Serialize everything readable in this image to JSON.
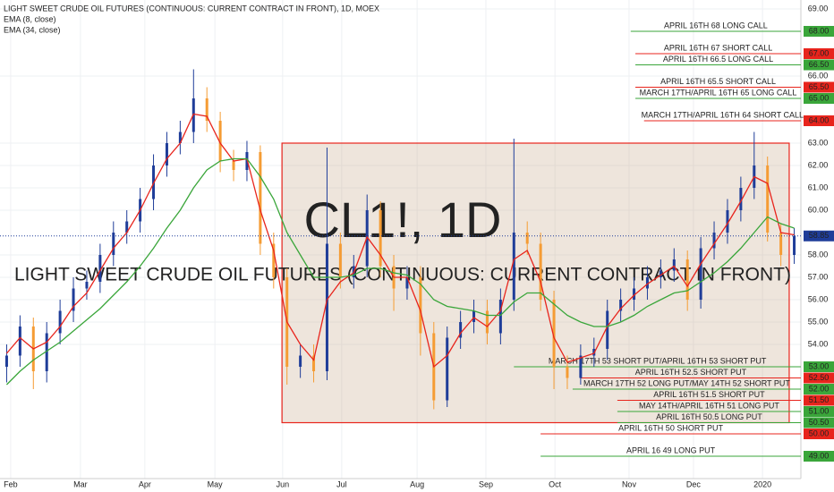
{
  "chart_data": {
    "type": "candlestick",
    "title": "LIGHT SWEET CRUDE OIL FUTURES (CONTINUOUS: CURRENT CONTRACT IN FRONT), 1D, MOEX",
    "watermark": "CL1!, 1D",
    "watermark_subtitle": "LIGHT SWEET CRUDE OIL FUTURES (CONTINUOUS: CURRENT CONTRACT IN FRONT)",
    "up_color": "#1f3d99",
    "down_color": "#f59c34",
    "x": [
      2,
      6,
      10,
      14,
      18,
      22,
      26,
      30,
      34,
      38,
      42,
      46,
      50,
      54,
      58,
      62,
      66,
      70,
      74,
      78,
      82,
      86,
      90,
      94,
      98,
      102,
      106,
      110,
      114,
      118,
      122,
      126,
      130,
      134,
      138,
      142,
      146,
      150,
      154,
      158,
      162,
      166,
      170,
      174,
      178,
      182,
      186,
      190,
      194,
      198,
      202,
      206,
      210,
      214,
      218,
      222,
      226,
      230,
      234,
      238
    ],
    "open": [
      53.0,
      53.5,
      54.8,
      52.8,
      54.5,
      55.5,
      56.5,
      56.8,
      58.0,
      59.0,
      59.5,
      60.5,
      62.0,
      63.0,
      63.5,
      65.0,
      64.0,
      62.2,
      61.8,
      62.6,
      58.5,
      57.0,
      53.0,
      53.5,
      52.8,
      58.5,
      57.0,
      57.5,
      60.0,
      57.5,
      56.5,
      57.0,
      54.5,
      51.5,
      54.3,
      55.0,
      55.5,
      54.5,
      56.0,
      59.0,
      58.5,
      56.0,
      53.0,
      52.5,
      53.5,
      53.8,
      55.5,
      56.0,
      56.5,
      57.0,
      57.3,
      57.8,
      56.0,
      58.3,
      59.0,
      60.0,
      61.0,
      62.0,
      59.0,
      58.0
    ],
    "high": [
      54.0,
      55.3,
      55.2,
      55.0,
      56.0,
      57.0,
      57.3,
      58.5,
      59.5,
      60.0,
      61.0,
      62.5,
      63.5,
      64.0,
      66.3,
      65.5,
      64.4,
      62.7,
      63.1,
      62.9,
      59.0,
      57.4,
      54.0,
      54.0,
      62.8,
      59.0,
      58.0,
      60.7,
      60.4,
      58.0,
      57.5,
      57.5,
      55.0,
      54.8,
      55.5,
      56.0,
      56.0,
      56.5,
      63.2,
      59.5,
      59.0,
      56.4,
      53.5,
      54.0,
      54.3,
      56.0,
      56.5,
      57.0,
      57.5,
      57.8,
      58.3,
      58.2,
      58.8,
      59.5,
      60.5,
      61.5,
      63.5,
      62.4,
      59.4,
      59.2
    ],
    "low": [
      52.3,
      53.0,
      52.0,
      52.3,
      54.0,
      55.0,
      56.0,
      56.3,
      57.5,
      58.5,
      59.0,
      60.0,
      61.5,
      62.5,
      63.0,
      63.5,
      61.7,
      61.3,
      61.3,
      58.0,
      56.5,
      52.2,
      52.5,
      52.3,
      52.4,
      56.5,
      56.5,
      57.0,
      57.0,
      55.5,
      56.0,
      53.5,
      51.1,
      51.2,
      53.8,
      54.5,
      54.0,
      54.0,
      55.5,
      58.0,
      55.5,
      52.0,
      52.0,
      52.2,
      53.0,
      53.3,
      55.0,
      55.5,
      56.0,
      56.5,
      56.8,
      55.5,
      55.6,
      57.8,
      58.5,
      59.5,
      60.5,
      58.6,
      57.5,
      57.6
    ],
    "close": [
      53.5,
      54.8,
      52.8,
      54.5,
      55.5,
      56.5,
      56.8,
      58.0,
      59.0,
      59.5,
      60.5,
      62.0,
      63.0,
      63.5,
      65.0,
      64.0,
      62.2,
      61.8,
      62.6,
      58.5,
      57.0,
      53.0,
      53.5,
      52.8,
      58.5,
      57.0,
      57.5,
      60.0,
      57.5,
      56.5,
      57.0,
      54.5,
      51.5,
      54.3,
      55.0,
      55.5,
      54.5,
      56.0,
      59.0,
      58.5,
      56.0,
      53.0,
      52.5,
      53.5,
      53.8,
      55.5,
      56.0,
      56.5,
      57.0,
      57.3,
      57.8,
      56.0,
      58.3,
      59.0,
      60.0,
      61.0,
      62.0,
      59.0,
      58.0,
      58.85
    ],
    "series": [
      {
        "name": "EMA (8, close)",
        "color": "#e8241c",
        "values": [
          53.6,
          54.3,
          53.8,
          54.1,
          54.8,
          55.7,
          56.3,
          57.3,
          58.3,
          59.0,
          60.0,
          61.2,
          62.3,
          63.0,
          64.3,
          64.2,
          63.0,
          62.2,
          62.3,
          60.0,
          58.2,
          55.0,
          54.0,
          53.3,
          56.0,
          56.8,
          57.2,
          58.8,
          58.0,
          57.0,
          57.0,
          55.5,
          53.0,
          53.5,
          54.5,
          55.2,
          54.8,
          55.5,
          57.8,
          58.2,
          56.8,
          54.3,
          53.2,
          53.4,
          53.6,
          54.8,
          55.6,
          56.2,
          56.7,
          57.1,
          57.5,
          56.6,
          57.6,
          58.5,
          59.4,
          60.4,
          61.5,
          61.2,
          59.0,
          58.9
        ]
      },
      {
        "name": "EMA (34, close)",
        "color": "#3aa63a",
        "values": [
          52.2,
          52.8,
          53.3,
          53.7,
          54.1,
          54.6,
          55.1,
          55.6,
          56.2,
          56.8,
          57.5,
          58.3,
          59.2,
          60.0,
          61.0,
          61.8,
          62.2,
          62.3,
          62.3,
          61.5,
          60.5,
          59.0,
          58.0,
          57.0,
          57.0,
          57.0,
          57.1,
          57.4,
          57.4,
          57.2,
          57.1,
          56.7,
          56.0,
          55.7,
          55.6,
          55.5,
          55.3,
          55.3,
          55.9,
          56.3,
          56.3,
          55.8,
          55.3,
          55.0,
          54.8,
          54.8,
          55.0,
          55.3,
          55.7,
          56.0,
          56.3,
          56.4,
          56.8,
          57.2,
          57.7,
          58.3,
          59.0,
          59.7,
          59.4,
          59.2
        ]
      }
    ],
    "xlim": [
      0,
      240
    ],
    "ylim": [
      48,
      69.4
    ],
    "xticks": [
      {
        "value": 3.2,
        "label": "Feb"
      },
      {
        "value": 24.1,
        "label": "Mar"
      },
      {
        "value": 43.4,
        "label": "Apr"
      },
      {
        "value": 64.4,
        "label": "May"
      },
      {
        "value": 84.7,
        "label": "Jun"
      },
      {
        "value": 102.4,
        "label": "Jul"
      },
      {
        "value": 125,
        "label": "Aug"
      },
      {
        "value": 145.6,
        "label": "Sep"
      },
      {
        "value": 166.3,
        "label": "Oct"
      },
      {
        "value": 188.5,
        "label": "Nov"
      },
      {
        "value": 207.8,
        "label": "Dec"
      },
      {
        "value": 228.5,
        "label": "2020"
      }
    ],
    "yticks": [
      {
        "value": 69,
        "label": "69.00"
      },
      {
        "value": 66,
        "label": "66.00"
      },
      {
        "value": 63,
        "label": "63.00"
      },
      {
        "value": 62,
        "label": "62.00"
      },
      {
        "value": 61,
        "label": "61.00"
      },
      {
        "value": 60,
        "label": "60.00"
      },
      {
        "value": 58,
        "label": "58.00"
      },
      {
        "value": 57,
        "label": "57.00"
      },
      {
        "value": 56,
        "label": "56.00"
      },
      {
        "value": 55,
        "label": "55.00"
      },
      {
        "value": 54,
        "label": "54.00"
      }
    ],
    "grid": true,
    "last_price": {
      "value": 58.85,
      "label": "58.85"
    },
    "box": {
      "x": [
        84.5,
        236.5
      ],
      "y": [
        63,
        50.5
      ],
      "color": "#e8241c"
    },
    "annotations": [
      {
        "text": "APRIL 16TH 68 LONG CALL",
        "level": {
          "value": 68,
          "label": "68.00"
        },
        "x_start": 189,
        "color": "#3aa63a"
      },
      {
        "text": "APRIL 16TH 67 SHORT CALL",
        "level": {
          "value": 67,
          "label": "67.00"
        },
        "x_start": 190.4,
        "color": "#e8241c"
      },
      {
        "text": "APRIL 16TH 66.5 LONG CALL",
        "level": {
          "value": 66.5,
          "label": "66.50"
        },
        "x_start": 190.4,
        "color": "#3aa63a"
      },
      {
        "text": "APRIL 16TH 65.5 SHORT CALL",
        "level": {
          "value": 65.5,
          "label": "65.50"
        },
        "x_start": 190.4,
        "color": "#e8241c"
      },
      {
        "text": "MARCH 17TH/APRIL 16TH 65 LONG CALL",
        "level": {
          "value": 65,
          "label": "65.00"
        },
        "x_start": 190.4,
        "color": "#3aa63a"
      },
      {
        "text": "MARCH 17TH/APRIL 16TH 64 SHORT CALL",
        "level": {
          "value": 64,
          "label": "64.00"
        },
        "x_start": 193,
        "color": "#e8241c"
      },
      {
        "text": "MARCH 17TH 53 SHORT PUT/APRIL 16TH 53 SHORT PUT",
        "level": {
          "value": 53,
          "label": "53.00"
        },
        "x_start": 154,
        "color": "#3aa63a"
      },
      {
        "text": "APRIL 16TH 52.5 SHORT PUT",
        "level": {
          "value": 52.5,
          "label": "52.50"
        },
        "x_start": 174,
        "color": "#e8241c"
      },
      {
        "text": "MARCH 17TH 52 LONG PUT/MAY 14TH 52 SHORT PUT",
        "level": {
          "value": 52,
          "label": "52.00"
        },
        "x_start": 171.6,
        "color": "#3aa63a"
      },
      {
        "text": "APRIL 16TH 51.5 SHORT PUT",
        "level": {
          "value": 51.5,
          "label": "51.50"
        },
        "x_start": 185,
        "color": "#e8241c"
      },
      {
        "text": "MAY 14TH/APRIL 16TH 51 LONG PUT",
        "level": {
          "value": 51,
          "label": "51.00"
        },
        "x_start": 185,
        "color": "#3aa63a"
      },
      {
        "text": "APRIL 16TH 50.5 LONG PUT",
        "level": {
          "value": 50.5,
          "label": "50.50"
        },
        "x_start": 185,
        "color": "#3aa63a"
      },
      {
        "text": "APRIL 16TH 50 SHORT PUT",
        "level": {
          "value": 50,
          "label": "50.00"
        },
        "x_start": 162,
        "color": "#e8241c"
      },
      {
        "text": "APRIL 16 49 LONG PUT",
        "level": {
          "value": 49,
          "label": "49.00"
        },
        "x_start": 162,
        "color": "#3aa63a"
      }
    ]
  }
}
